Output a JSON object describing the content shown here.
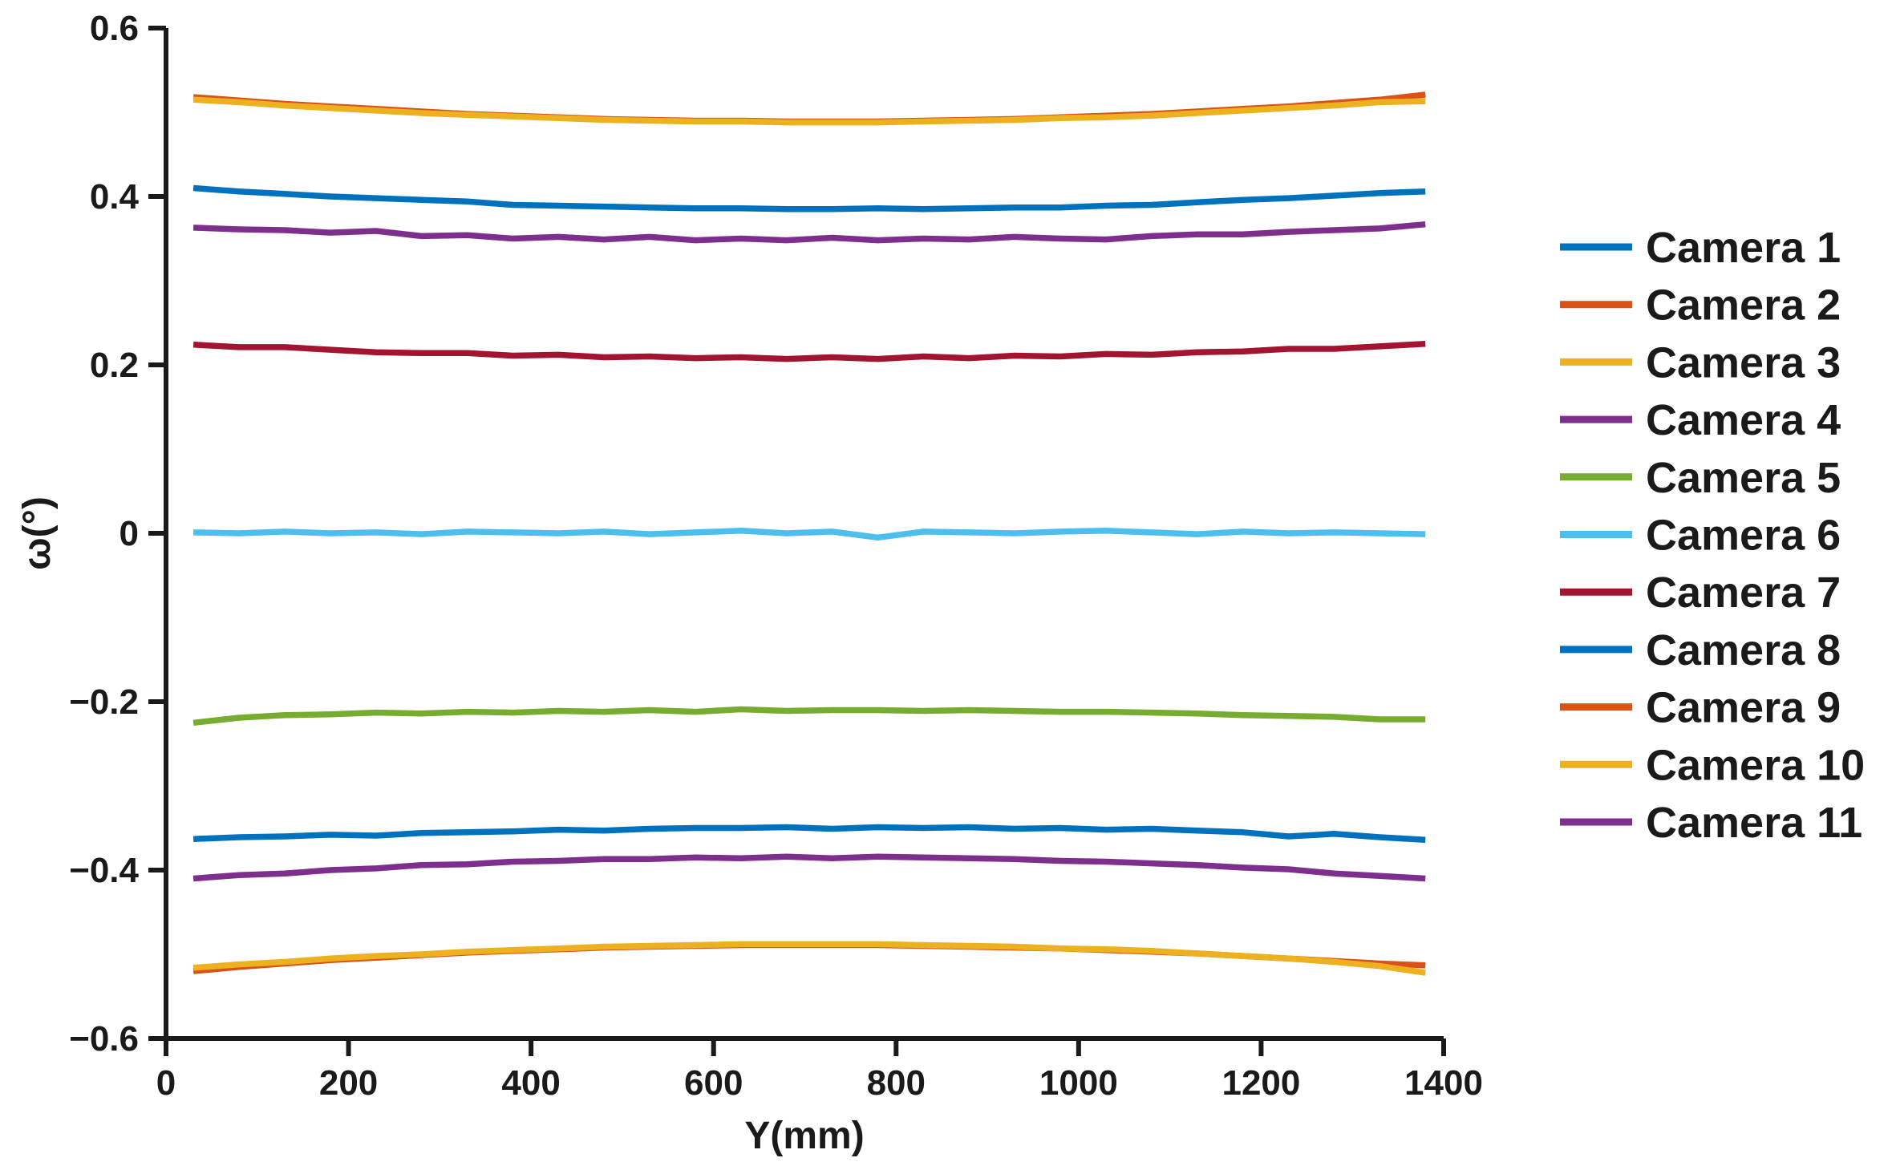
{
  "figure": {
    "background": "#ffffff",
    "axis_color": "#1a1a1a",
    "text_color": "#1a1a1a"
  },
  "chart_data": {
    "type": "line",
    "title": "",
    "xlabel": "Y(mm)",
    "ylabel": "ω(°)",
    "xlim": [
      0,
      1400
    ],
    "ylim": [
      -0.6,
      0.6
    ],
    "grid": false,
    "legend_position": "right-outside",
    "xticks": [
      0,
      200,
      400,
      600,
      800,
      1000,
      1200,
      1400
    ],
    "xtick_labels": [
      "0",
      "200",
      "400",
      "600",
      "800",
      "1000",
      "1200",
      "1400"
    ],
    "yticks": [
      0.6,
      0.4,
      0.2,
      0,
      -0.2,
      -0.4,
      -0.6
    ],
    "ytick_labels": [
      "0.6",
      "0.4",
      "0.2",
      "0",
      "−0.2",
      "−0.4",
      "−0.6"
    ],
    "x": [
      30,
      80,
      130,
      180,
      230,
      280,
      330,
      380,
      430,
      480,
      530,
      580,
      630,
      680,
      730,
      780,
      830,
      880,
      930,
      980,
      1030,
      1080,
      1130,
      1180,
      1230,
      1280,
      1330,
      1380
    ],
    "series": [
      {
        "name": "Camera 1",
        "color": "#0072BD",
        "values": [
          0.41,
          0.406,
          0.403,
          0.4,
          0.398,
          0.396,
          0.394,
          0.39,
          0.389,
          0.388,
          0.387,
          0.386,
          0.386,
          0.385,
          0.385,
          0.386,
          0.385,
          0.386,
          0.387,
          0.387,
          0.389,
          0.39,
          0.393,
          0.396,
          0.398,
          0.401,
          0.404,
          0.406
        ]
      },
      {
        "name": "Camera 2",
        "color": "#D95319",
        "values": [
          0.518,
          0.514,
          0.51,
          0.507,
          0.504,
          0.501,
          0.498,
          0.496,
          0.494,
          0.492,
          0.491,
          0.49,
          0.49,
          0.489,
          0.489,
          0.489,
          0.49,
          0.491,
          0.492,
          0.494,
          0.496,
          0.498,
          0.501,
          0.504,
          0.507,
          0.511,
          0.515,
          0.521
        ]
      },
      {
        "name": "Camera 3",
        "color": "#EDB120",
        "values": [
          0.515,
          0.512,
          0.508,
          0.505,
          0.502,
          0.499,
          0.497,
          0.495,
          0.493,
          0.491,
          0.49,
          0.489,
          0.489,
          0.488,
          0.488,
          0.488,
          0.489,
          0.49,
          0.491,
          0.493,
          0.494,
          0.496,
          0.499,
          0.502,
          0.505,
          0.508,
          0.512,
          0.513
        ]
      },
      {
        "name": "Camera 4",
        "color": "#7E2F8E",
        "values": [
          0.363,
          0.361,
          0.36,
          0.357,
          0.359,
          0.353,
          0.354,
          0.35,
          0.352,
          0.349,
          0.352,
          0.348,
          0.35,
          0.348,
          0.351,
          0.348,
          0.35,
          0.349,
          0.352,
          0.35,
          0.349,
          0.353,
          0.355,
          0.355,
          0.358,
          0.36,
          0.362,
          0.367
        ]
      },
      {
        "name": "Camera 5",
        "color": "#77AC30",
        "values": [
          -0.225,
          -0.219,
          -0.216,
          -0.215,
          -0.213,
          -0.214,
          -0.212,
          -0.213,
          -0.211,
          -0.212,
          -0.21,
          -0.212,
          -0.209,
          -0.211,
          -0.21,
          -0.21,
          -0.211,
          -0.21,
          -0.211,
          -0.212,
          -0.212,
          -0.213,
          -0.214,
          -0.216,
          -0.217,
          -0.218,
          -0.221,
          -0.221
        ]
      },
      {
        "name": "Camera 6",
        "color": "#4DBEEE",
        "values": [
          0.001,
          0.0,
          0.002,
          0.0,
          0.001,
          -0.001,
          0.002,
          0.001,
          0.0,
          0.002,
          -0.001,
          0.001,
          0.003,
          0.0,
          0.002,
          -0.005,
          0.002,
          0.001,
          0.0,
          0.002,
          0.003,
          0.001,
          -0.001,
          0.002,
          0.0,
          0.001,
          0.0,
          -0.001
        ]
      },
      {
        "name": "Camera 7",
        "color": "#A2142F",
        "values": [
          0.224,
          0.221,
          0.221,
          0.218,
          0.215,
          0.214,
          0.214,
          0.211,
          0.212,
          0.209,
          0.21,
          0.208,
          0.209,
          0.207,
          0.209,
          0.207,
          0.21,
          0.208,
          0.211,
          0.21,
          0.213,
          0.212,
          0.215,
          0.216,
          0.219,
          0.219,
          0.222,
          0.225
        ]
      },
      {
        "name": "Camera 8",
        "color": "#0072BD",
        "values": [
          -0.363,
          -0.361,
          -0.36,
          -0.358,
          -0.359,
          -0.356,
          -0.355,
          -0.354,
          -0.352,
          -0.353,
          -0.351,
          -0.35,
          -0.35,
          -0.349,
          -0.351,
          -0.349,
          -0.35,
          -0.349,
          -0.351,
          -0.35,
          -0.352,
          -0.351,
          -0.353,
          -0.355,
          -0.36,
          -0.357,
          -0.361,
          -0.364
        ]
      },
      {
        "name": "Camera 9",
        "color": "#D95319",
        "values": [
          -0.52,
          -0.515,
          -0.511,
          -0.507,
          -0.504,
          -0.501,
          -0.498,
          -0.496,
          -0.494,
          -0.492,
          -0.491,
          -0.49,
          -0.489,
          -0.489,
          -0.489,
          -0.489,
          -0.49,
          -0.491,
          -0.492,
          -0.493,
          -0.495,
          -0.497,
          -0.499,
          -0.502,
          -0.505,
          -0.508,
          -0.511,
          -0.513
        ]
      },
      {
        "name": "Camera 10",
        "color": "#EDB120",
        "values": [
          -0.516,
          -0.512,
          -0.509,
          -0.505,
          -0.502,
          -0.5,
          -0.497,
          -0.495,
          -0.493,
          -0.491,
          -0.49,
          -0.489,
          -0.488,
          -0.488,
          -0.488,
          -0.488,
          -0.489,
          -0.49,
          -0.491,
          -0.493,
          -0.494,
          -0.496,
          -0.499,
          -0.502,
          -0.505,
          -0.509,
          -0.514,
          -0.522
        ]
      },
      {
        "name": "Camera 11",
        "color": "#7E2F8E",
        "values": [
          -0.41,
          -0.406,
          -0.404,
          -0.4,
          -0.398,
          -0.394,
          -0.393,
          -0.39,
          -0.389,
          -0.387,
          -0.387,
          -0.385,
          -0.386,
          -0.384,
          -0.386,
          -0.384,
          -0.385,
          -0.386,
          -0.387,
          -0.389,
          -0.39,
          -0.392,
          -0.394,
          -0.397,
          -0.399,
          -0.404,
          -0.407,
          -0.41
        ]
      }
    ]
  }
}
